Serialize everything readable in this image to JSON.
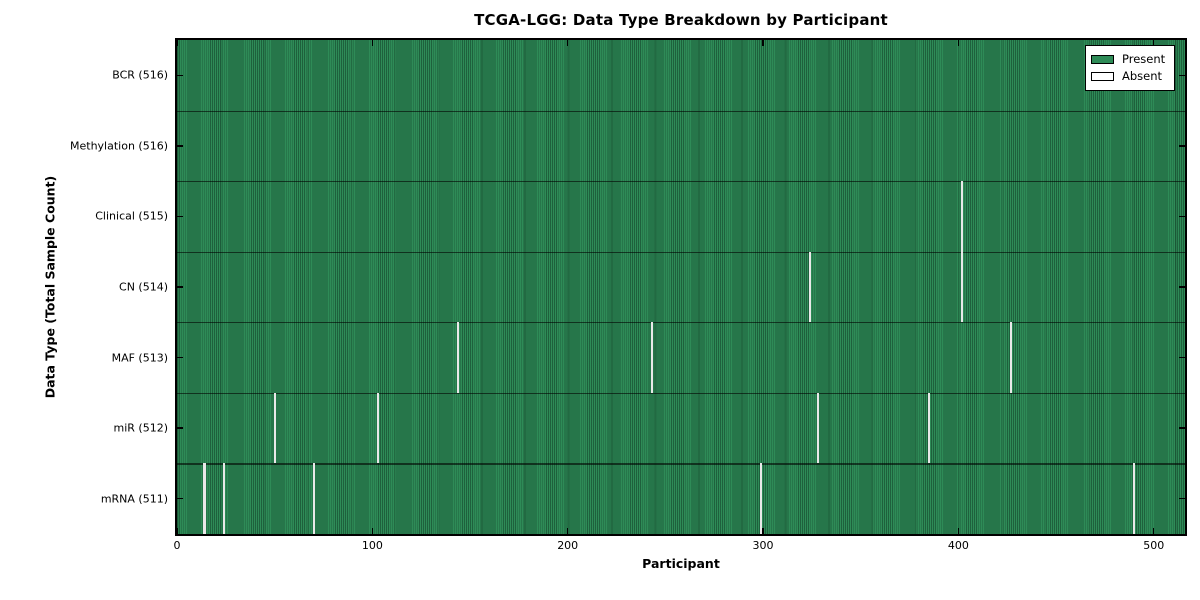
{
  "colors": {
    "present": "#2E8B57",
    "absent": "#FFFFFF",
    "absence_gap_line": "#E9E9E9",
    "spine": "#000000",
    "background": "#FFFFFF"
  },
  "legend": {
    "present_label": "Present",
    "absent_label": "Absent"
  },
  "chart_data": {
    "type": "heatmap",
    "title": "TCGA-LGG: Data Type Breakdown by Participant",
    "xlabel": "Participant",
    "ylabel": "Data Type (Total Sample Count)",
    "x_ticks": [
      0,
      100,
      200,
      300,
      400,
      500
    ],
    "x_range": [
      0,
      516
    ],
    "n_participants": 516,
    "grid": false,
    "legend_position": "upper right",
    "rows": [
      {
        "label": "BCR (516)",
        "data_type": "BCR",
        "present_count": 516,
        "absent_participants": []
      },
      {
        "label": "Methylation (516)",
        "data_type": "Methylation",
        "present_count": 516,
        "absent_participants": []
      },
      {
        "label": "Clinical (515)",
        "data_type": "Clinical",
        "present_count": 515,
        "absent_participants": [
          402
        ]
      },
      {
        "label": "CN (514)",
        "data_type": "CN",
        "present_count": 514,
        "absent_participants": [
          324,
          402
        ]
      },
      {
        "label": "MAF (513)",
        "data_type": "MAF",
        "present_count": 513,
        "absent_participants": [
          144,
          243,
          427
        ]
      },
      {
        "label": "miR (512)",
        "data_type": "miR",
        "present_count": 512,
        "absent_participants": [
          50,
          103,
          328,
          385
        ]
      },
      {
        "label": "mRNA (511)",
        "data_type": "mRNA",
        "present_count": 511,
        "absent_participants": [
          14,
          24,
          70,
          299,
          490
        ]
      }
    ],
    "legend": [
      {
        "label": "Present",
        "color": "#2E8B57"
      },
      {
        "label": "Absent",
        "color": "#FFFFFF"
      }
    ]
  }
}
